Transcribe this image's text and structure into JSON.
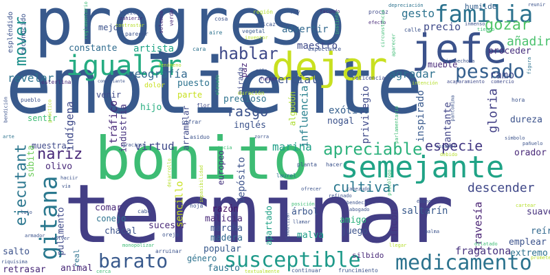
{
  "words": [
    {
      "text": "emoliente",
      "color": "#38598c"
    },
    {
      "text": "terminar",
      "color": "#433e85"
    },
    {
      "text": "bonito",
      "color": "#3dbc74"
    },
    {
      "text": "progreso",
      "color": "#38598c"
    },
    {
      "text": "dejar",
      "color": "#c8e020"
    },
    {
      "text": "jefe",
      "color": "#3b528b"
    },
    {
      "text": "semejante",
      "color": "#20a386"
    },
    {
      "text": "igualar",
      "color": "#25ac82"
    },
    {
      "text": "familia",
      "color": "#2c728e"
    },
    {
      "text": "pesado",
      "color": "#345f8d"
    },
    {
      "text": "medicamento",
      "color": "#2c738e"
    },
    {
      "text": "susceptible",
      "color": "#1f9a8a"
    },
    {
      "text": "barato",
      "color": "#38598c"
    },
    {
      "text": "gitana",
      "color": "#2a788e"
    },
    {
      "text": "ejecutant",
      "color": "#2a768e"
    },
    {
      "text": "apreciable",
      "color": "#2db27d"
    },
    {
      "text": "hablar",
      "color": "#3e4989"
    },
    {
      "text": "gozar",
      "color": "#52c569"
    },
    {
      "text": "mover",
      "color": "#21918c"
    },
    {
      "text": "añadir",
      "color": "#4ac16d"
    },
    {
      "text": "rasgo",
      "color": "#3b528b"
    },
    {
      "text": "cultivar",
      "color": "#2a788e"
    },
    {
      "text": "nariz",
      "color": "#482878"
    },
    {
      "text": "descender",
      "color": "#3f4788"
    },
    {
      "text": "especie",
      "color": "#443983"
    },
    {
      "text": "marina",
      "color": "#1fa088"
    },
    {
      "text": "geografía",
      "color": "#31688e"
    },
    {
      "text": "virtud",
      "color": "#3e4989"
    },
    {
      "text": "gloria",
      "color": "#424086"
    },
    {
      "text": "travesía",
      "color": "#482173"
    },
    {
      "text": "fragatona",
      "color": "#46327e"
    },
    {
      "text": "revelar",
      "color": "#2c728e"
    },
    {
      "text": "comercial",
      "color": "#3b528b"
    },
    {
      "text": "depósito",
      "color": "#3b528b"
    },
    {
      "text": "tráfico",
      "color": "#482878"
    },
    {
      "text": "industria",
      "color": "#46337f"
    },
    {
      "text": "influencia",
      "color": "#27808e"
    },
    {
      "text": "privilegio",
      "color": "#3e4989"
    },
    {
      "text": "indígena",
      "color": "#3e4989"
    },
    {
      "text": "algodón",
      "color": "#addc30"
    },
    {
      "text": "exótico",
      "color": "#355f8d"
    },
    {
      "text": "inspirado",
      "color": "#38598c"
    },
    {
      "text": "cantante",
      "color": "#414487"
    },
    {
      "text": "agradar",
      "color": "#2d708e"
    },
    {
      "text": "puesto",
      "color": "#2c728e"
    },
    {
      "text": "precio",
      "color": "#3e4989"
    },
    {
      "text": "gesto",
      "color": "#2c728e"
    },
    {
      "text": "maestro",
      "color": "#3e4989"
    },
    {
      "text": "advertir",
      "color": "#31688e"
    },
    {
      "text": "constante",
      "color": "#2f6b8e"
    },
    {
      "text": "artista",
      "color": "#20a386"
    },
    {
      "text": "mejor",
      "color": "#3b528b"
    },
    {
      "text": "humilde",
      "color": "#355f8d"
    },
    {
      "text": "proceder",
      "color": "#472f7d"
    },
    {
      "text": "mueble",
      "color": "#482878"
    },
    {
      "text": "ramo",
      "color": "#3e4989"
    },
    {
      "text": "dureza",
      "color": "#3b528b"
    },
    {
      "text": "orador",
      "color": "#482878"
    },
    {
      "text": "saltarín",
      "color": "#38598c"
    },
    {
      "text": "suave",
      "color": "#46327e"
    },
    {
      "text": "reír",
      "color": "#31688e"
    },
    {
      "text": "emplear",
      "color": "#3b528b"
    },
    {
      "text": "extremo",
      "color": "#2c728e"
    },
    {
      "text": "rincón",
      "color": "#46327e"
    },
    {
      "text": "juego",
      "color": "#3b528b"
    },
    {
      "text": "malva",
      "color": "#1f9e89"
    },
    {
      "text": "amigo",
      "color": "#2db27d"
    },
    {
      "text": "árbol",
      "color": "#39568c"
    },
    {
      "text": "apartado",
      "color": "#1fa187"
    },
    {
      "text": "sucesor",
      "color": "#482878"
    },
    {
      "text": "marcha",
      "color": "#3b528b"
    },
    {
      "text": "madera",
      "color": "#31688e"
    },
    {
      "text": "malicia",
      "color": "#482878"
    },
    {
      "text": "razón",
      "color": "#471365"
    },
    {
      "text": "popular",
      "color": "#38598c"
    },
    {
      "text": "fausto",
      "color": "#2c728e"
    },
    {
      "text": "género",
      "color": "#2c728e"
    },
    {
      "text": "chacal",
      "color": "#3b528b"
    },
    {
      "text": "comar",
      "color": "#482878"
    },
    {
      "text": "conejo",
      "color": "#2c728e"
    },
    {
      "text": "sencillo",
      "color": "#c8e020"
    },
    {
      "text": "pulimento",
      "color": "#3e4989"
    },
    {
      "text": "súbita",
      "color": "#6ccd5a"
    },
    {
      "text": "muestra",
      "color": "#3e4989"
    },
    {
      "text": "olivo",
      "color": "#482878"
    },
    {
      "text": "sentir",
      "color": "#3dbc74"
    },
    {
      "text": "venir",
      "color": "#3e4989"
    },
    {
      "text": "hijo",
      "color": "#28ae80"
    },
    {
      "text": "arramblar",
      "color": "#3e4989"
    },
    {
      "text": "europeo",
      "color": "#46337f"
    },
    {
      "text": "precioso",
      "color": "#2c728e"
    },
    {
      "text": "inglés",
      "color": "#3b528b"
    },
    {
      "text": "nogal",
      "color": "#3b528b"
    },
    {
      "text": "paz",
      "color": "#482878"
    },
    {
      "text": "mirada",
      "color": "#3e4989"
    },
    {
      "text": "animal",
      "color": "#482878"
    },
    {
      "text": "salto",
      "color": "#3b528b"
    },
    {
      "text": "real",
      "color": "#2c728e"
    },
    {
      "text": "retrasar",
      "color": "#482878"
    },
    {
      "text": "silbido",
      "color": "#482878"
    },
    {
      "text": "parte",
      "color": "#c8e020"
    },
    {
      "text": "reconocido",
      "color": "#3b528b"
    },
    {
      "text": "espléndido",
      "color": "#3b528b"
    },
    {
      "text": "esterlina",
      "color": "#482878"
    },
    {
      "text": "dolor",
      "color": "#c8e020"
    },
    {
      "text": "fenómeno",
      "color": "#b5de2b"
    },
    {
      "text": "verde",
      "color": "#482878"
    },
    {
      "text": "solemne",
      "color": "#482878"
    },
    {
      "text": "aire",
      "color": "#2c728e"
    },
    {
      "text": "cosa",
      "color": "#3b528b"
    },
    {
      "text": "vegetal",
      "color": "#38598c"
    },
    {
      "text": "inventor",
      "color": "#b5de2b"
    },
    {
      "text": "eficaz",
      "color": "#3b528b"
    },
    {
      "text": "región",
      "color": "#b5de2b"
    },
    {
      "text": "rey",
      "color": "#3b528b"
    },
    {
      "text": "facundo",
      "color": "#482878"
    },
    {
      "text": "procaz",
      "color": "#3e4989"
    },
    {
      "text": "depreciación",
      "color": "#2c728e"
    },
    {
      "text": "reunir",
      "color": "#3b528b"
    },
    {
      "text": "hocico",
      "color": "#3b528b"
    },
    {
      "text": "zahierir",
      "color": "#482878"
    },
    {
      "text": "reglamentario",
      "color": "#3dbc74"
    },
    {
      "text": "contrastar",
      "color": "#b5de2b"
    },
    {
      "text": "parecer",
      "color": "#3b528b"
    },
    {
      "text": "cara",
      "color": "#2c728e"
    },
    {
      "text": "expectante",
      "color": "#3b528b"
    },
    {
      "text": "instinto",
      "color": "#3dbc74"
    },
    {
      "text": "efecto",
      "color": "#482878"
    },
    {
      "text": "circunstancia",
      "color": "#3dbc74"
    },
    {
      "text": "inmenso",
      "color": "#3b528b"
    },
    {
      "text": "tiempo",
      "color": "#3dbc74"
    },
    {
      "text": "calle",
      "color": "#3b528b"
    },
    {
      "text": "aparecer",
      "color": "#3dbc74"
    },
    {
      "text": "bienhechora",
      "color": "#3b528b"
    },
    {
      "text": "niño",
      "color": "#3b528b"
    },
    {
      "text": "elevado",
      "color": "#3dbc74"
    },
    {
      "text": "fundar",
      "color": "#482878"
    },
    {
      "text": "hoja",
      "color": "#3b528b"
    },
    {
      "text": "flor",
      "color": "#3e4989"
    },
    {
      "text": "duración",
      "color": "#b5de2b"
    },
    {
      "text": "reticencia",
      "color": "#3e4989"
    },
    {
      "text": "intención",
      "color": "#b5de2b"
    },
    {
      "text": "acaparamiento",
      "color": "#3e4989"
    },
    {
      "text": "comercio",
      "color": "#3e4989"
    },
    {
      "text": "figura",
      "color": "#2c728e"
    },
    {
      "text": "pueblo",
      "color": "#3b528b"
    },
    {
      "text": "práctico",
      "color": "#b5de2b"
    },
    {
      "text": "comerciante",
      "color": "#3b528b"
    },
    {
      "text": "bendición",
      "color": "#3b528b"
    },
    {
      "text": "arte",
      "color": "#2c728e"
    },
    {
      "text": "cifrar",
      "color": "#3b528b"
    },
    {
      "text": "parlamentario",
      "color": "#3dbc74"
    },
    {
      "text": "pantomima",
      "color": "#3b528b"
    },
    {
      "text": "hora",
      "color": "#3b528b"
    },
    {
      "text": "pañuelo",
      "color": "#3b528b"
    },
    {
      "text": "símbolo",
      "color": "#3b528b"
    },
    {
      "text": "español",
      "color": "#3b528b"
    },
    {
      "text": "debido",
      "color": "#b5de2b"
    },
    {
      "text": "gracioso",
      "color": "#3b528b"
    },
    {
      "text": "asiduo",
      "color": "#3b528b"
    },
    {
      "text": "zorra",
      "color": "#3b528b"
    },
    {
      "text": "astucia",
      "color": "#3dbc74"
    },
    {
      "text": "planta",
      "color": "#3b528b"
    },
    {
      "text": "hacer",
      "color": "#3b528b"
    },
    {
      "text": "laurel",
      "color": "#2c728e"
    },
    {
      "text": "ofrecer",
      "color": "#3b528b"
    },
    {
      "text": "cabezudo",
      "color": "#3b528b"
    },
    {
      "text": "desarrollo",
      "color": "#b5de2b"
    },
    {
      "text": "impasibilidad",
      "color": "#b5de2b"
    },
    {
      "text": "psicólogo",
      "color": "#3dbc74"
    },
    {
      "text": "refinado",
      "color": "#3b528b"
    },
    {
      "text": "bendecir",
      "color": "#3b528b"
    },
    {
      "text": "abogado",
      "color": "#3b528b"
    },
    {
      "text": "ébano",
      "color": "#3b528b"
    },
    {
      "text": "posición",
      "color": "#3dbc74"
    },
    {
      "text": "simbolizar",
      "color": "#3b528b"
    },
    {
      "text": "llamar",
      "color": "#3b528b"
    },
    {
      "text": "palma",
      "color": "#3b528b"
    },
    {
      "text": "cartear",
      "color": "#b5de2b"
    },
    {
      "text": "prometer",
      "color": "#b5de2b"
    },
    {
      "text": "dilatado",
      "color": "#3dbc74"
    },
    {
      "text": "llegar",
      "color": "#b5de2b"
    },
    {
      "text": "armador",
      "color": "#3b528b"
    },
    {
      "text": "volver",
      "color": "#3b528b"
    },
    {
      "text": "lujo",
      "color": "#3b528b"
    },
    {
      "text": "haciir",
      "color": "#3b528b"
    },
    {
      "text": "vía",
      "color": "#3b528b"
    },
    {
      "text": "riquísima",
      "color": "#3b528b"
    },
    {
      "text": "cerca",
      "color": "#3dbc74"
    },
    {
      "text": "textualmente",
      "color": "#b5de2b"
    },
    {
      "text": "continuar",
      "color": "#3b528b"
    },
    {
      "text": "fruncimiento",
      "color": "#3b528b"
    },
    {
      "text": "monopolizar",
      "color": "#3dbc74"
    },
    {
      "text": "arruinar",
      "color": "#3b528b"
    },
    {
      "text": "oreja",
      "color": "#3b528b"
    },
    {
      "text": "cabo",
      "color": "#3b528b"
    }
  ]
}
